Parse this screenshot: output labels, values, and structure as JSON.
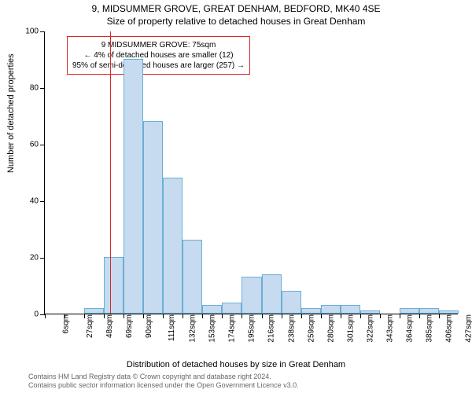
{
  "title": "9, MIDSUMMER GROVE, GREAT DENHAM, BEDFORD, MK40 4SE",
  "subtitle": "Size of property relative to detached houses in Great Denham",
  "ylabel": "Number of detached properties",
  "xlabel": "Distribution of detached houses by size in Great Denham",
  "attribution_line1": "Contains HM Land Registry data © Crown copyright and database right 2024.",
  "attribution_line2": "Contains public sector information licensed under the Open Government Licence v3.0.",
  "histogram": {
    "type": "histogram",
    "ylim": [
      0,
      100
    ],
    "ytick_step": 20,
    "yticks": [
      0,
      20,
      40,
      60,
      80,
      100
    ],
    "xticks": [
      "6sqm",
      "27sqm",
      "48sqm",
      "69sqm",
      "90sqm",
      "111sqm",
      "132sqm",
      "153sqm",
      "174sqm",
      "195sqm",
      "216sqm",
      "238sqm",
      "259sqm",
      "280sqm",
      "301sqm",
      "322sqm",
      "343sqm",
      "364sqm",
      "385sqm",
      "406sqm",
      "427sqm"
    ],
    "bar_color": "#c6dbef",
    "bar_border_color": "#6baed6",
    "bar_width": 1.0,
    "background_color": "#ffffff",
    "values": [
      0,
      0,
      2,
      20,
      90,
      68,
      48,
      26,
      3,
      4,
      13,
      14,
      8,
      2,
      3,
      3,
      1,
      0,
      2,
      2,
      1
    ],
    "marker": {
      "x_index": 3.3,
      "color": "#d62728",
      "label_lines": [
        "9 MIDSUMMER GROVE: 75sqm",
        "← 4% of detached houses are smaller (12)",
        "95% of semi-detached houses are larger (257) →"
      ]
    }
  }
}
